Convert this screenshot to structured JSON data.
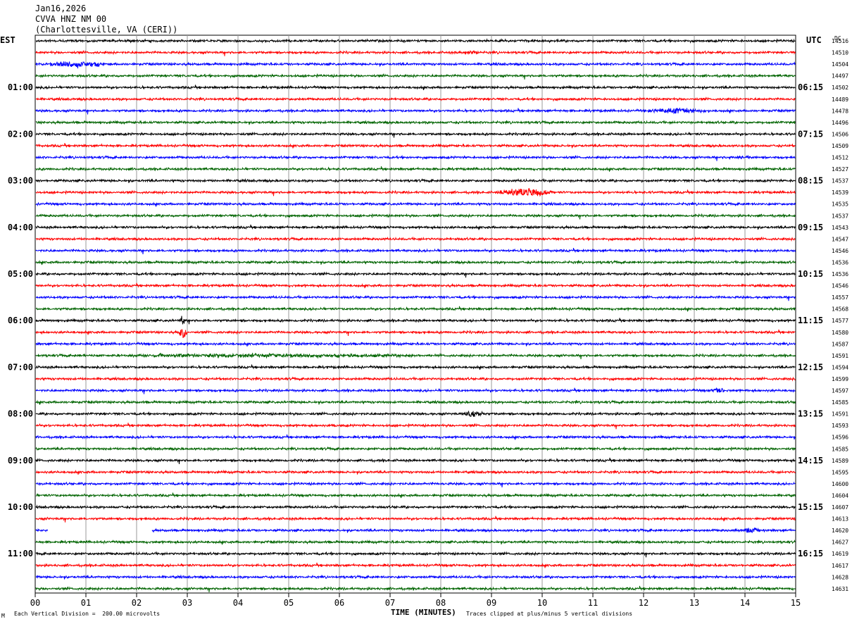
{
  "header": {
    "date": "Jan16,2026",
    "station": "CVVA HNZ NM 00",
    "location": "(Charlottesville, VA (CERI))"
  },
  "left_zone_label": "EST",
  "right_zone_label": "UTC",
  "dc_label": "DC",
  "footer": {
    "scale_note": "Each Vertical Division =  200.00 microvolts",
    "clip_note": "Traces clipped at plus/minus 5 vertical divisions",
    "corner_mark": "M"
  },
  "chart_data": {
    "type": "line",
    "title": "",
    "xlabel": "TIME (MINUTES)",
    "xlim": [
      0,
      15
    ],
    "x_ticks": [
      "00",
      "01",
      "02",
      "03",
      "04",
      "05",
      "06",
      "07",
      "08",
      "09",
      "10",
      "11",
      "12",
      "13",
      "14",
      "15"
    ],
    "trace_colors": [
      "#000000",
      "#ff0000",
      "#0000ff",
      "#006400"
    ],
    "left_hour_labels": [
      "01:00",
      "02:00",
      "03:00",
      "04:00",
      "05:00",
      "06:00",
      "07:00",
      "08:00",
      "09:00",
      "10:00",
      "11:00"
    ],
    "right_hour_labels": [
      "06:15",
      "07:15",
      "08:15",
      "09:15",
      "10:15",
      "11:15",
      "12:15",
      "13:15",
      "14:15",
      "15:15",
      "16:15"
    ],
    "dc_offsets": [
      14516,
      14510,
      14504,
      14497,
      14502,
      14489,
      14478,
      14496,
      14506,
      14509,
      14512,
      14527,
      14537,
      14539,
      14535,
      14537,
      14543,
      14547,
      14546,
      14536,
      14536,
      14546,
      14557,
      14568,
      14577,
      14580,
      14587,
      14591,
      14594,
      14599,
      14597,
      14585,
      14591,
      14593,
      14596,
      14585,
      14589,
      14595,
      14600,
      14604,
      14607,
      14613,
      14620,
      14627,
      14619,
      14617,
      14628,
      14631
    ],
    "events": [
      {
        "trace": 1,
        "x_start": 8.4,
        "x_end": 8.8,
        "amp": 2
      },
      {
        "trace": 2,
        "x_start": 0.1,
        "x_end": 1.5,
        "amp": 4
      },
      {
        "trace": 6,
        "x_start": 12.0,
        "x_end": 13.3,
        "amp": 3.5
      },
      {
        "trace": 10,
        "x_start": 13.6,
        "x_end": 14.1,
        "amp": 1.8
      },
      {
        "trace": 13,
        "x_start": 9.0,
        "x_end": 10.3,
        "amp": 5
      },
      {
        "trace": 24,
        "x_start": 2.85,
        "x_end": 2.95,
        "amp": 7
      },
      {
        "trace": 25,
        "x_start": 2.82,
        "x_end": 3.0,
        "amp": 8
      },
      {
        "trace": 27,
        "x_start": 0.9,
        "x_end": 8.0,
        "amp": 2
      },
      {
        "trace": 30,
        "x_start": 13.35,
        "x_end": 13.6,
        "amp": 5
      },
      {
        "trace": 32,
        "x_start": 8.4,
        "x_end": 8.9,
        "amp": 4
      },
      {
        "trace": 33,
        "x_start": 5.8,
        "x_end": 6.0,
        "amp": 2
      },
      {
        "trace": 42,
        "x_start": 13.8,
        "x_end": 14.4,
        "amp": 3
      }
    ],
    "gaps": [
      {
        "trace": 42,
        "x_start": 0.25,
        "x_end": 2.3
      }
    ]
  }
}
